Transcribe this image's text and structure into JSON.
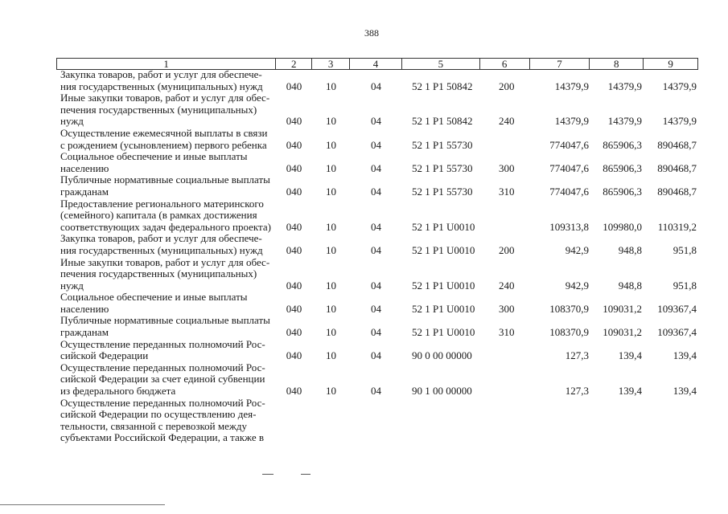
{
  "page_number": "388",
  "header": [
    "1",
    "2",
    "3",
    "4",
    "5",
    "6",
    "7",
    "8",
    "9"
  ],
  "rows": [
    {
      "name": "Закупка товаров, работ и услуг для обеспечения государственных (муниципальных) нужд",
      "lines": [
        "Закупка товаров, работ и услуг для обеспече-",
        "ния государственных (муниципальных) нужд"
      ],
      "c2": "040",
      "c3": "10",
      "c4": "04",
      "c5": "52 1 P1 50842",
      "c6": "200",
      "c7": "14379,9",
      "c8": "14379,9",
      "c9": "14379,9"
    },
    {
      "lines": [
        "Иные закупки товаров, работ и услуг для обес-",
        "печения государственных (муниципальных)",
        "нужд"
      ],
      "c2": "040",
      "c3": "10",
      "c4": "04",
      "c5": "52 1 P1 50842",
      "c6": "240",
      "c7": "14379,9",
      "c8": "14379,9",
      "c9": "14379,9"
    },
    {
      "lines": [
        "Осуществление ежемесячной выплаты в связи",
        "с рождением (усыновлением) первого ребенка"
      ],
      "c2": "040",
      "c3": "10",
      "c4": "04",
      "c5": "52 1 P1 55730",
      "c6": "",
      "c7": "774047,6",
      "c8": "865906,3",
      "c9": "890468,7"
    },
    {
      "lines": [
        "Социальное обеспечение и иные выплаты",
        "населению"
      ],
      "c2": "040",
      "c3": "10",
      "c4": "04",
      "c5": "52 1 P1 55730",
      "c6": "300",
      "c7": "774047,6",
      "c8": "865906,3",
      "c9": "890468,7"
    },
    {
      "lines": [
        "Публичные нормативные социальные выплаты",
        "гражданам"
      ],
      "c2": "040",
      "c3": "10",
      "c4": "04",
      "c5": "52 1 P1 55730",
      "c6": "310",
      "c7": "774047,6",
      "c8": "865906,3",
      "c9": "890468,7"
    },
    {
      "lines": [
        "Предоставление регионального материнского",
        "(семейного) капитала (в рамках достижения",
        "соответствующих задач федерального проекта)"
      ],
      "c2": "040",
      "c3": "10",
      "c4": "04",
      "c5": "52 1 P1 U0010",
      "c6": "",
      "c7": "109313,8",
      "c8": "109980,0",
      "c9": "110319,2"
    },
    {
      "lines": [
        "Закупка товаров, работ и услуг для обеспече-",
        "ния государственных (муниципальных) нужд"
      ],
      "c2": "040",
      "c3": "10",
      "c4": "04",
      "c5": "52 1 P1 U0010",
      "c6": "200",
      "c7": "942,9",
      "c8": "948,8",
      "c9": "951,8"
    },
    {
      "lines": [
        "Иные закупки товаров, работ и услуг для обес-",
        "печения государственных (муниципальных)",
        "нужд"
      ],
      "c2": "040",
      "c3": "10",
      "c4": "04",
      "c5": "52 1 P1 U0010",
      "c6": "240",
      "c7": "942,9",
      "c8": "948,8",
      "c9": "951,8"
    },
    {
      "lines": [
        "Социальное обеспечение и иные выплаты",
        "населению"
      ],
      "c2": "040",
      "c3": "10",
      "c4": "04",
      "c5": "52 1 P1 U0010",
      "c6": "300",
      "c7": "108370,9",
      "c8": "109031,2",
      "c9": "109367,4"
    },
    {
      "lines": [
        "Публичные нормативные социальные выплаты",
        "гражданам"
      ],
      "c2": "040",
      "c3": "10",
      "c4": "04",
      "c5": "52 1 P1 U0010",
      "c6": "310",
      "c7": "108370,9",
      "c8": "109031,2",
      "c9": "109367,4"
    },
    {
      "lines": [
        "Осуществление переданных полномочий Рос-",
        "сийской Федерации"
      ],
      "c2": "040",
      "c3": "10",
      "c4": "04",
      "c5": "90 0 00 00000",
      "c6": "",
      "c7": "127,3",
      "c8": "139,4",
      "c9": "139,4"
    },
    {
      "lines": [
        "Осуществление переданных полномочий Рос-",
        "сийской Федерации за счет единой субвенции",
        "из федерального бюджета"
      ],
      "c2": "040",
      "c3": "10",
      "c4": "04",
      "c5": "90 1 00 00000",
      "c6": "",
      "c7": "127,3",
      "c8": "139,4",
      "c9": "139,4"
    },
    {
      "lines": [
        "Осуществление переданных полномочий Рос-",
        "сийской Федерации по осуществлению дея-",
        "тельности, связанной с перевозкой между",
        "субъектами Российской Федерации, а также в"
      ],
      "c2": "",
      "c3": "",
      "c4": "",
      "c5": "",
      "c6": "",
      "c7": "",
      "c8": "",
      "c9": ""
    }
  ]
}
